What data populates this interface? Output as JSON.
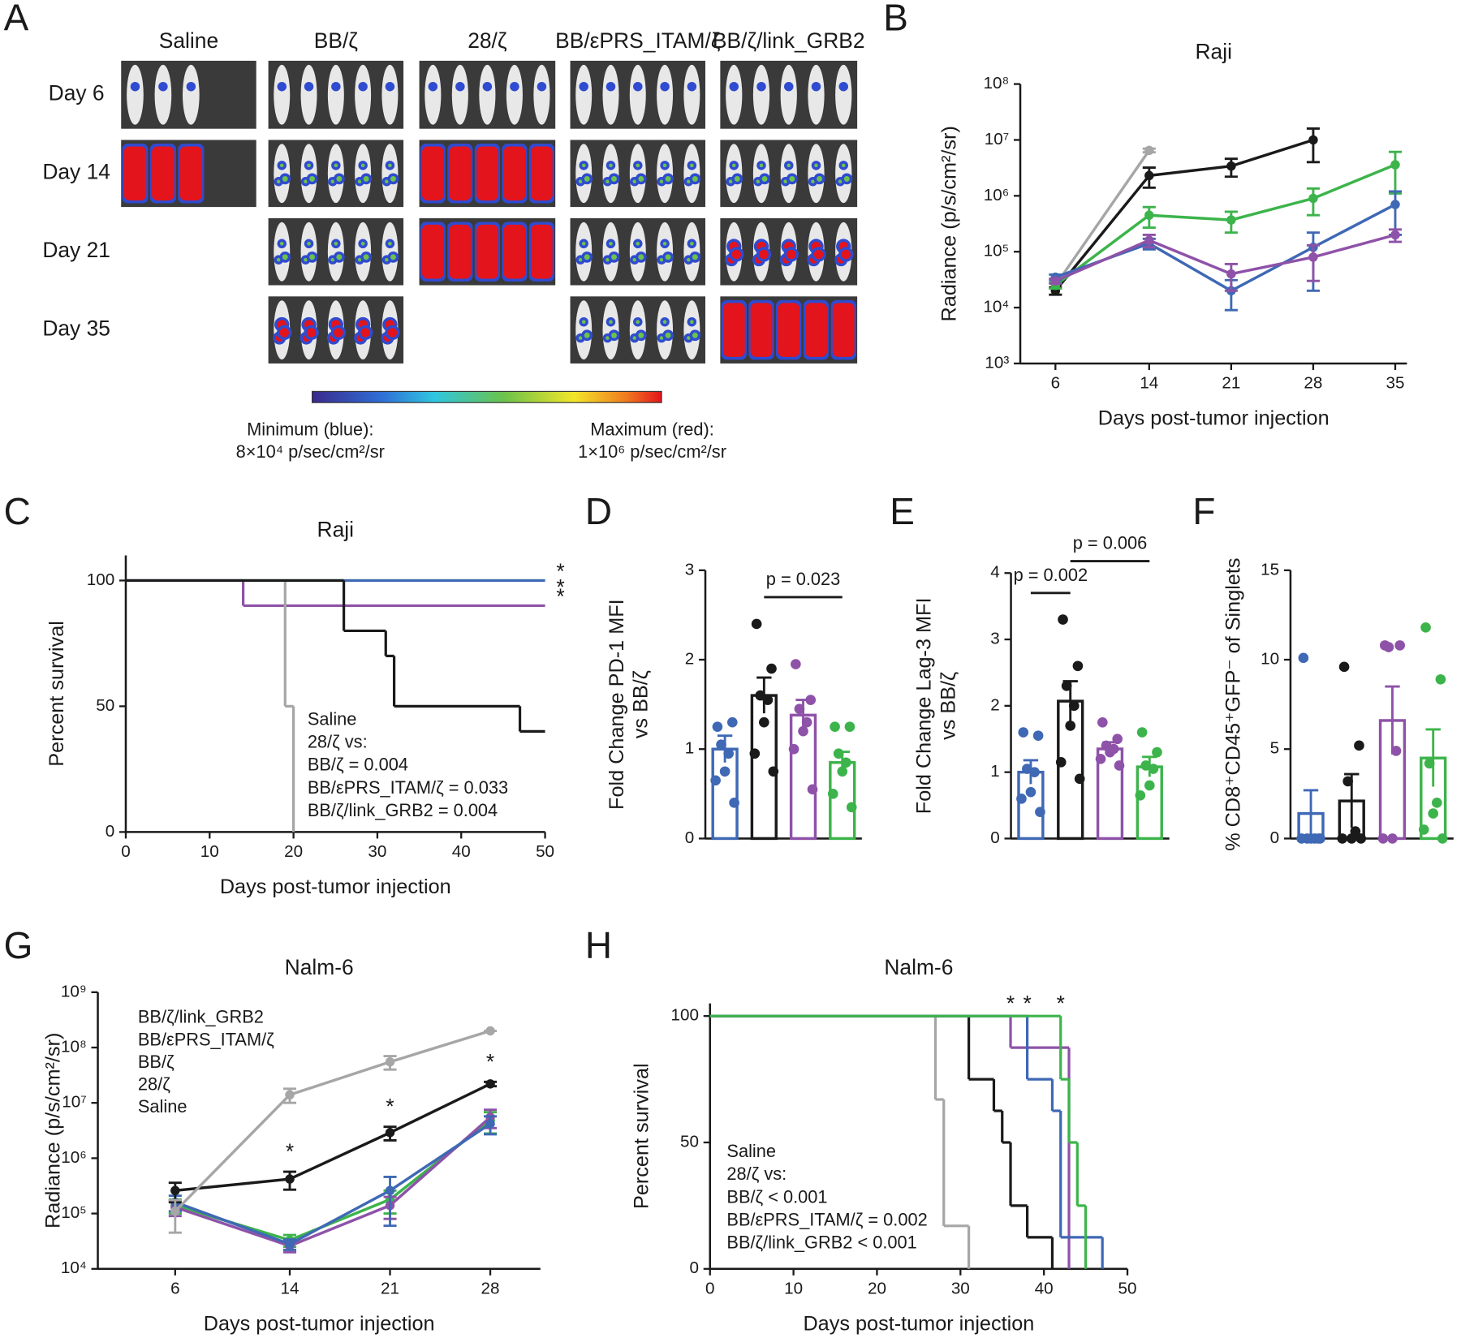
{
  "panel_a": {
    "panel": "A",
    "groups": [
      {
        "name": "Saline",
        "color": "#a6a6a6"
      },
      {
        "name": "BB/ζ",
        "color": "#2e46a3"
      },
      {
        "name": "28/ζ",
        "color": "#1a1a1a"
      },
      {
        "name": "BB/εPRS_ITAM/ζ",
        "color": "#8e52a8"
      },
      {
        "name": "BB/ζ/link_GRB2",
        "color": "#2db34a"
      }
    ],
    "days": [
      "Day 6",
      "Day 14",
      "Day 21",
      "Day 35"
    ],
    "colorbar": {
      "min_label": "Minimum (blue):",
      "min_value": "8×10⁴ p/sec/cm²/sr",
      "max_label": "Maximum (red):",
      "max_value": "1×10⁶ p/sec/cm²/sr"
    }
  },
  "chart_data": [
    {
      "panel": "B",
      "type": "line",
      "title": "Raji",
      "xlabel": "Days post-tumor injection",
      "ylabel": "Radiance (p/s/cm²/sr)",
      "log_y": true,
      "x": [
        6,
        14,
        21,
        28,
        35
      ],
      "xlim": [
        3,
        36
      ],
      "xticks": [
        6,
        14,
        21,
        28,
        35
      ],
      "ylim": [
        1000,
        100000000
      ],
      "yticks": [
        {
          "value": 1000,
          "label": "10³"
        },
        {
          "value": 10000,
          "label": "10⁴"
        },
        {
          "value": 100000,
          "label": "10⁵"
        },
        {
          "value": 1000000,
          "label": "10⁶"
        },
        {
          "value": 10000000,
          "label": "10⁷"
        },
        {
          "value": 100000000,
          "label": "10⁸"
        }
      ],
      "series": [
        {
          "color": "#a6a6a6",
          "values": [
            25000,
            6500000,
            null,
            null,
            null
          ],
          "errors": [
            3000,
            500000,
            null,
            null,
            null
          ]
        },
        {
          "color": "#1a1a1a",
          "values": [
            20000,
            2300000,
            3400000,
            10000000,
            null
          ],
          "errors": [
            3000,
            900000,
            1200000,
            6000000,
            null
          ]
        },
        {
          "color": "#3cb44b",
          "values": [
            25000,
            450000,
            370000,
            900000,
            3600000
          ],
          "errors": [
            3000,
            180000,
            150000,
            450000,
            2500000
          ]
        },
        {
          "color": "#3f68b5",
          "values": [
            35000,
            140000,
            20000,
            120000,
            700000
          ],
          "errors": [
            4000,
            30000,
            11000,
            100000,
            500000
          ]
        },
        {
          "color": "#8e52a8",
          "values": [
            30000,
            160000,
            40000,
            80000,
            200000
          ],
          "errors": [
            3000,
            40000,
            20000,
            50000,
            50000
          ]
        }
      ]
    },
    {
      "panel": "C",
      "type": "survival",
      "title": "Raji",
      "xlabel": "Days post-tumor injection",
      "ylabel": "Percent survival",
      "xlim": [
        0,
        50
      ],
      "xticks": [
        0,
        10,
        20,
        30,
        40,
        50
      ],
      "ylim": [
        0,
        110
      ],
      "yticks": [
        0,
        50,
        100
      ],
      "series": [
        {
          "color": "#3cb44b",
          "x": [
            0,
            50
          ],
          "y": [
            100,
            100
          ],
          "star": "*"
        },
        {
          "color": "#3f68b5",
          "x": [
            0,
            50
          ],
          "y": [
            100,
            100
          ],
          "star": "*"
        },
        {
          "color": "#8e52a8",
          "x": [
            0,
            14,
            50
          ],
          "y": [
            100,
            90,
            90
          ],
          "star": "*"
        },
        {
          "color": "#a6a6a6",
          "x": [
            0,
            19,
            20
          ],
          "y": [
            100,
            50,
            0
          ]
        },
        {
          "color": "#1a1a1a",
          "x": [
            0,
            26,
            31,
            32,
            47,
            50
          ],
          "y": [
            100,
            80,
            70,
            50,
            40,
            40
          ]
        }
      ],
      "annotations": [
        {
          "text": "Saline",
          "color": "#a6a6a6"
        },
        {
          "text": "28/ζ vs:",
          "color": "#1a1a1a"
        },
        {
          "text": "BB/ζ = 0.004",
          "color": "#2e46a3"
        },
        {
          "text": "BB/εPRS_ITAM/ζ = 0.033",
          "color": "#8e52a8"
        },
        {
          "text": "BB/ζ/link_GRB2 = 0.004",
          "color": "#2db34a"
        }
      ]
    },
    {
      "panel": "D",
      "type": "bar",
      "ylabel": [
        "Fold Change PD-1 MFI",
        "vs BB/ζ"
      ],
      "ylim": [
        0,
        3
      ],
      "yticks": [
        0,
        1,
        2,
        3
      ],
      "colors": [
        "#3f68b5",
        "#1a1a1a",
        "#8e52a8",
        "#3cb44b"
      ],
      "values": [
        1.0,
        1.6,
        1.38,
        0.85
      ],
      "errors": [
        0.15,
        0.2,
        0.17,
        0.12
      ],
      "points": [
        [
          1.25,
          1.3,
          1.05,
          0.95,
          0.75,
          0.65,
          0.4
        ],
        [
          2.4,
          1.9,
          1.6,
          1.55,
          1.3,
          0.95,
          0.75
        ],
        [
          1.95,
          1.55,
          1.45,
          1.3,
          1.2,
          1.0,
          0.55
        ],
        [
          1.25,
          1.25,
          0.95,
          0.85,
          0.75,
          0.5,
          0.35
        ]
      ],
      "comparisons": [
        {
          "label": "p = 0.023",
          "bars": [
            1,
            3
          ]
        }
      ]
    },
    {
      "panel": "E",
      "type": "bar",
      "ylabel": [
        "Fold Change Lag-3 MFI",
        "vs BB/ζ"
      ],
      "ylim": [
        0,
        4
      ],
      "yticks": [
        0,
        1,
        2,
        3,
        4
      ],
      "colors": [
        "#3f68b5",
        "#1a1a1a",
        "#8e52a8",
        "#3cb44b"
      ],
      "values": [
        1.0,
        2.07,
        1.35,
        1.08
      ],
      "errors": [
        0.18,
        0.3,
        0.1,
        0.15
      ],
      "points": [
        [
          1.6,
          1.55,
          1.05,
          1.0,
          0.7,
          0.6,
          0.4
        ],
        [
          3.3,
          2.6,
          2.3,
          2.0,
          1.7,
          1.15,
          0.9
        ],
        [
          1.75,
          1.5,
          1.4,
          1.35,
          1.3,
          1.2,
          1.1
        ],
        [
          1.6,
          1.3,
          1.1,
          1.05,
          0.8,
          0.65
        ]
      ],
      "comparisons": [
        {
          "label": "p = 0.002",
          "bars": [
            0,
            1
          ]
        },
        {
          "label": "p = 0.006",
          "bars": [
            1,
            3
          ]
        }
      ]
    },
    {
      "panel": "F",
      "type": "bar",
      "ylabel": "% CD8⁺CD45⁺GFP⁻ of Singlets",
      "ylim": [
        0,
        15
      ],
      "yticks": [
        0,
        5,
        10,
        15
      ],
      "colors": [
        "#3f68b5",
        "#1a1a1a",
        "#8e52a8",
        "#3cb44b"
      ],
      "values": [
        1.4,
        2.1,
        6.6,
        4.5
      ],
      "errors": [
        1.3,
        1.5,
        1.9,
        1.6
      ],
      "points": [
        [
          10.1,
          0,
          0,
          0,
          0,
          0,
          0
        ],
        [
          9.6,
          5.2,
          3.2,
          0.4,
          0,
          0,
          0
        ],
        [
          10.8,
          10.8,
          10.7,
          4.9,
          0,
          0
        ],
        [
          11.8,
          8.9,
          4.2,
          2.0,
          1.4,
          0.5,
          0
        ]
      ]
    },
    {
      "panel": "G",
      "type": "line",
      "title": "Nalm-6",
      "xlabel": "Days post-tumor injection",
      "ylabel": "Radiance (p/s/cm²/sr)",
      "log_y": true,
      "legend": "upper left",
      "x": [
        6,
        14,
        21,
        28
      ],
      "xlim": [
        0.6,
        31.5
      ],
      "xticks": [
        6,
        14,
        21,
        28
      ],
      "ylim": [
        10000,
        1000000000
      ],
      "yticks": [
        {
          "value": 10000,
          "label": "10⁴"
        },
        {
          "value": 100000,
          "label": "10⁵"
        },
        {
          "value": 1000000,
          "label": "10⁶"
        },
        {
          "value": 10000000,
          "label": "10⁷"
        },
        {
          "value": 100000000,
          "label": "10⁸"
        },
        {
          "value": 1000000000,
          "label": "10⁹"
        }
      ],
      "series": [
        {
          "name": "BB/ζ/link_GRB2",
          "color": "#3cb44b",
          "values": [
            140000,
            33000,
            180000,
            4800000
          ],
          "errors": [
            40000,
            8000,
            80000,
            2000000
          ]
        },
        {
          "name": "BB/εPRS_ITAM/ζ",
          "color": "#8e52a8",
          "values": [
            130000,
            26000,
            140000,
            5500000
          ],
          "errors": [
            40000,
            6000,
            60000,
            2000000
          ]
        },
        {
          "name": "BB/ζ",
          "color": "#3f68b5",
          "values": [
            160000,
            28000,
            260000,
            4200000
          ],
          "errors": [
            50000,
            6000,
            200000,
            1500000
          ]
        },
        {
          "name": "28/ζ",
          "color": "#1a1a1a",
          "values": [
            260000,
            420000,
            2900000,
            22000000
          ],
          "errors": [
            100000,
            150000,
            800000,
            2000000
          ],
          "stars": [
            null,
            "*",
            "*",
            "*"
          ]
        },
        {
          "name": "Saline",
          "color": "#a6a6a6",
          "values": [
            110000,
            14000000,
            55000000,
            200000000
          ],
          "errors": [
            65000,
            4000000,
            15000000,
            0
          ]
        }
      ]
    },
    {
      "panel": "H",
      "type": "survival",
      "title": "Nalm-6",
      "xlabel": "Days post-tumor injection",
      "ylabel": "Percent survival",
      "xlim": [
        0,
        50
      ],
      "xticks": [
        0,
        10,
        20,
        30,
        40,
        50
      ],
      "ylim": [
        0,
        105
      ],
      "yticks": [
        0,
        50,
        100
      ],
      "series": [
        {
          "color": "#a6a6a6",
          "x": [
            0,
            27,
            28,
            31
          ],
          "y": [
            100,
            67,
            17,
            0
          ]
        },
        {
          "color": "#1a1a1a",
          "x": [
            0,
            31,
            34,
            35,
            36,
            38,
            41
          ],
          "y": [
            100,
            75,
            62.5,
            50,
            25,
            12.5,
            0
          ]
        },
        {
          "color": "#8e52a8",
          "x": [
            0,
            36,
            43
          ],
          "y": [
            100,
            87.5,
            0
          ],
          "star": "*"
        },
        {
          "color": "#3f68b5",
          "x": [
            0,
            38,
            41,
            42,
            47
          ],
          "y": [
            100,
            75,
            62.5,
            12.5,
            0
          ],
          "star": "*"
        },
        {
          "color": "#3cb44b",
          "x": [
            0,
            42,
            43,
            44,
            45
          ],
          "y": [
            100,
            75,
            50,
            25,
            0
          ],
          "star": "*"
        }
      ],
      "annotations": [
        {
          "text": "Saline",
          "color": "#a6a6a6"
        },
        {
          "text": "28/ζ vs:",
          "color": "#1a1a1a"
        },
        {
          "text": "BB/ζ < 0.001",
          "color": "#2e46a3"
        },
        {
          "text": "BB/εPRS_ITAM/ζ = 0.002",
          "color": "#8e52a8"
        },
        {
          "text": "BB/ζ/link_GRB2 < 0.001",
          "color": "#2db34a"
        }
      ]
    }
  ]
}
